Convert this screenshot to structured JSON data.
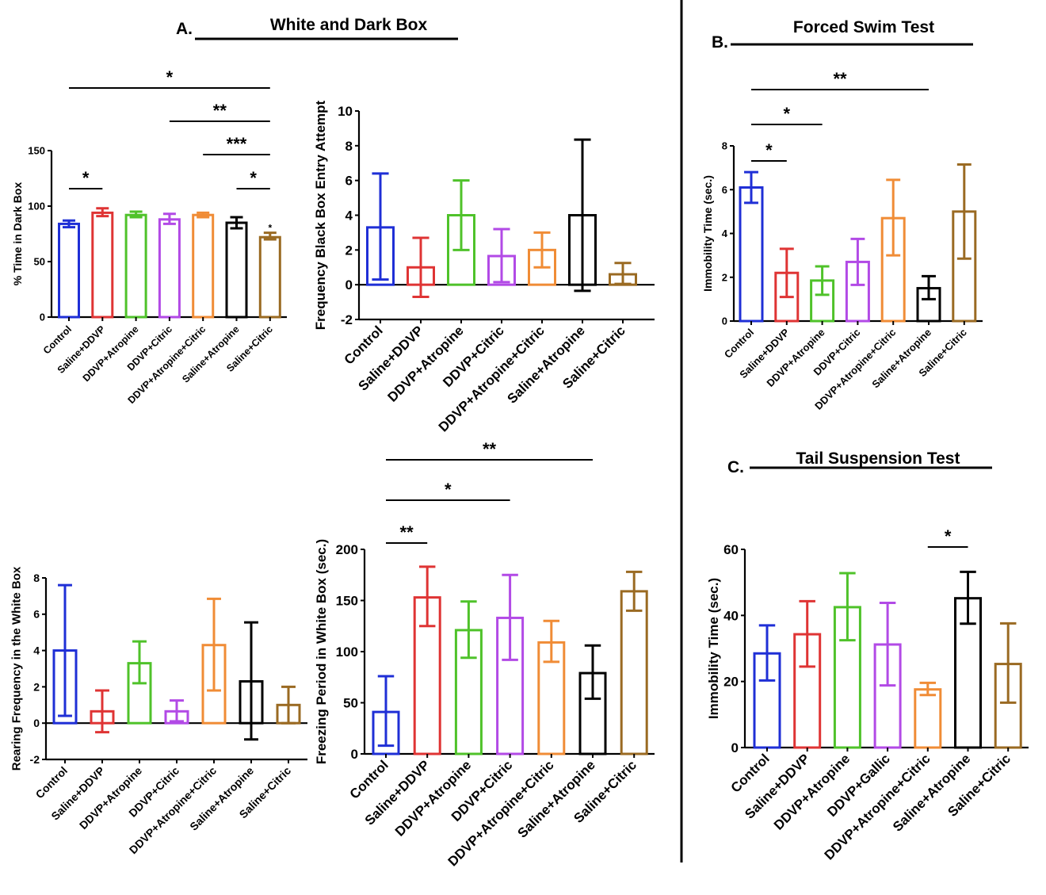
{
  "sections": {
    "A": {
      "letter": "A.",
      "title": "White and Dark Box"
    },
    "B": {
      "letter": "B.",
      "title": "Forced Swim Test"
    },
    "C": {
      "letter": "C.",
      "title": "Tail Suspension Test"
    }
  },
  "colors": {
    "Control": "#1f2fd6",
    "Saline+DDVP": "#df3434",
    "DDVP+Atropine": "#4fc22a",
    "DDVP+Citric": "#b24ae6",
    "DDVP+Atropine+Citric": "#f08c36",
    "Saline+Atropine": "#000000",
    "Saline+Citric": "#9a6a22",
    "DDVP+Gallic": "#b24ae6"
  },
  "chart_data": [
    {
      "id": "time-dark-box",
      "section": "A",
      "type": "bar",
      "title": "",
      "xlabel": "",
      "ylabel": "% Time in Dark Box",
      "ylim": [
        0,
        150
      ],
      "yticks": [
        0,
        50,
        100,
        150
      ],
      "grid": false,
      "categories": [
        "Control",
        "Saline+DDVP",
        "DDVP+Atropine",
        "DDVP+Citric",
        "DDVP+Atropine+Citric",
        "Saline+Atropine",
        "Saline+Citric"
      ],
      "values": [
        84,
        94,
        92,
        88,
        92,
        85,
        72
      ],
      "error_low": [
        81,
        91,
        90,
        84,
        90,
        80,
        70
      ],
      "error_high": [
        87,
        98,
        95,
        93,
        94,
        90,
        76
      ],
      "bar_annotations": [
        {
          "category": "Saline+Citric",
          "text": "*"
        }
      ],
      "significance": [
        {
          "from": "Control",
          "to": "Saline+DDVP",
          "label": "*"
        },
        {
          "from": "DDVP+Atropine+Citric",
          "to": "Saline+Citric",
          "label": "***"
        },
        {
          "from": "Saline+Atropine",
          "to": "Saline+Citric",
          "label": "*"
        },
        {
          "from": "DDVP+Citric",
          "to": "Saline+Citric",
          "label": "**"
        },
        {
          "from": "Control",
          "to": "Saline+Citric",
          "label": "*"
        }
      ]
    },
    {
      "id": "black-box-entry",
      "section": "A",
      "type": "bar",
      "title": "",
      "xlabel": "",
      "ylabel": "Frequency Black Box Entry Attempt",
      "ylim": [
        -2,
        10
      ],
      "yticks": [
        -2,
        0,
        2,
        4,
        6,
        8,
        10
      ],
      "grid": false,
      "categories": [
        "Control",
        "Saline+DDVP",
        "DDVP+Atropine",
        "DDVP+Citric",
        "DDVP+Atropine+Citric",
        "Saline+Atropine",
        "Saline+Citric"
      ],
      "values": [
        3.3,
        1.0,
        4.0,
        1.65,
        2.0,
        4.0,
        0.6
      ],
      "error_low": [
        0.3,
        -0.7,
        2.0,
        0.15,
        1.0,
        -0.35,
        0.05
      ],
      "error_high": [
        6.4,
        2.7,
        6.0,
        3.2,
        3.0,
        8.35,
        1.25
      ],
      "significance": []
    },
    {
      "id": "forced-swim",
      "section": "B",
      "type": "bar",
      "title": "",
      "xlabel": "",
      "ylabel": "Immobility Time (sec.)",
      "ylim": [
        0,
        8
      ],
      "yticks": [
        0,
        2,
        4,
        6,
        8
      ],
      "grid": false,
      "categories": [
        "Control",
        "Saline+DDVP",
        "DDVP+Atropine",
        "DDVP+Citric",
        "DDVP+Atropine+Citric",
        "Saline+Atropine",
        "Saline+Citric"
      ],
      "values": [
        6.1,
        2.2,
        1.85,
        2.7,
        4.7,
        1.5,
        5.0
      ],
      "error_low": [
        5.4,
        1.1,
        1.2,
        1.65,
        3.0,
        1.0,
        2.85
      ],
      "error_high": [
        6.8,
        3.3,
        2.5,
        3.75,
        6.45,
        2.05,
        7.15
      ],
      "significance": [
        {
          "from": "Control",
          "to": "Saline+DDVP",
          "label": "*"
        },
        {
          "from": "Control",
          "to": "DDVP+Atropine",
          "label": "*"
        },
        {
          "from": "Control",
          "to": "Saline+Atropine",
          "label": "**"
        }
      ]
    },
    {
      "id": "rearing",
      "section": "A",
      "type": "bar",
      "title": "",
      "xlabel": "",
      "ylabel": "Rearing Frequency in the White Box",
      "ylim": [
        -2,
        8
      ],
      "yticks": [
        -2,
        0,
        2,
        4,
        6,
        8
      ],
      "grid": false,
      "categories": [
        "Control",
        "Saline+DDVP",
        "DDVP+Atropine",
        "DDVP+Citric",
        "DDVP+Atropine+Citric",
        "Saline+Atropine",
        "Saline+Citric"
      ],
      "values": [
        4.0,
        0.65,
        3.3,
        0.65,
        4.3,
        2.3,
        1.0
      ],
      "error_low": [
        0.4,
        -0.5,
        2.2,
        0.1,
        1.8,
        -0.9,
        0.0
      ],
      "error_high": [
        7.6,
        1.8,
        4.5,
        1.25,
        6.85,
        5.55,
        2.0
      ],
      "significance": []
    },
    {
      "id": "freezing",
      "section": "A",
      "type": "bar",
      "title": "",
      "xlabel": "",
      "ylabel": "Freezing Period in White Box (sec.)",
      "ylim": [
        0,
        200
      ],
      "yticks": [
        0,
        50,
        100,
        150,
        200
      ],
      "grid": false,
      "categories": [
        "Control",
        "Saline+DDVP",
        "DDVP+Atropine",
        "DDVP+Citric",
        "DDVP+Atropine+Citric",
        "Saline+Atropine",
        "Saline+Citric"
      ],
      "values": [
        41,
        153,
        121,
        133,
        109,
        79,
        159
      ],
      "error_low": [
        8,
        125,
        94,
        92,
        90,
        54,
        140
      ],
      "error_high": [
        76,
        183,
        149,
        175,
        130,
        106,
        178
      ],
      "significance": [
        {
          "from": "Control",
          "to": "Saline+DDVP",
          "label": "**"
        },
        {
          "from": "Control",
          "to": "DDVP+Citric",
          "label": "*"
        },
        {
          "from": "Control",
          "to": "Saline+Atropine",
          "label": "**"
        }
      ]
    },
    {
      "id": "tail-suspension",
      "section": "C",
      "type": "bar",
      "title": "",
      "xlabel": "",
      "ylabel": "Immobility Time (sec.)",
      "ylim": [
        0,
        60
      ],
      "yticks": [
        0,
        20,
        40,
        60
      ],
      "grid": false,
      "categories": [
        "Control",
        "Saline+DDVP",
        "DDVP+Atropine",
        "DDVP+Gallic",
        "DDVP+Atropine+Citric",
        "Saline+Atropine",
        "Saline+Citric"
      ],
      "values": [
        28.5,
        34.3,
        42.5,
        31.2,
        17.6,
        45.2,
        25.3
      ],
      "error_low": [
        20.3,
        24.5,
        32.5,
        18.8,
        15.9,
        37.5,
        13.6
      ],
      "error_high": [
        37.0,
        44.3,
        52.8,
        43.8,
        19.6,
        53.2,
        37.6
      ],
      "significance": [
        {
          "from": "DDVP+Atropine+Citric",
          "to": "Saline+Atropine",
          "label": "*"
        }
      ]
    }
  ]
}
